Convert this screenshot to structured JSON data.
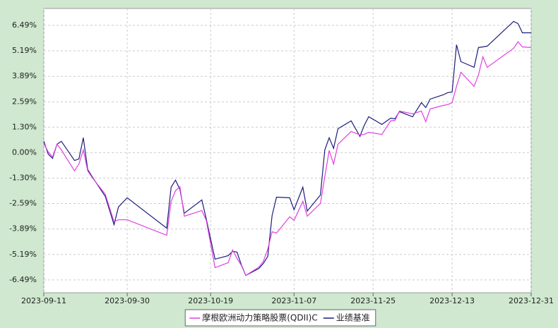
{
  "chart_data": {
    "type": "line",
    "x": [
      "2023-09-11",
      "2023-09-12",
      "2023-09-13",
      "2023-09-14",
      "2023-09-15",
      "2023-09-18",
      "2023-09-19",
      "2023-09-20",
      "2023-09-21",
      "2023-09-22",
      "2023-09-25",
      "2023-09-27",
      "2023-09-28",
      "2023-09-30",
      "2023-10-09",
      "2023-10-10",
      "2023-10-11",
      "2023-10-12",
      "2023-10-13",
      "2023-10-17",
      "2023-10-18",
      "2023-10-20",
      "2023-10-23",
      "2023-10-24",
      "2023-10-25",
      "2023-10-26",
      "2023-10-27",
      "2023-10-30",
      "2023-10-31",
      "2023-11-01",
      "2023-11-02",
      "2023-11-03",
      "2023-11-06",
      "2023-11-07",
      "2023-11-09",
      "2023-11-10",
      "2023-11-13",
      "2023-11-14",
      "2023-11-15",
      "2023-11-16",
      "2023-11-17",
      "2023-11-20",
      "2023-11-22",
      "2023-11-23",
      "2023-11-24",
      "2023-11-27",
      "2023-11-29",
      "2023-11-30",
      "2023-12-01",
      "2023-12-04",
      "2023-12-06",
      "2023-12-07",
      "2023-12-08",
      "2023-12-11",
      "2023-12-12",
      "2023-12-13",
      "2023-12-14",
      "2023-12-15",
      "2023-12-18",
      "2023-12-19",
      "2023-12-20",
      "2023-12-21",
      "2023-12-27",
      "2023-12-28",
      "2023-12-29",
      "2023-12-31"
    ],
    "series": [
      {
        "name": "摩根欧洲动力策略股票(QDII)C",
        "color": "#e040e0",
        "values": [
          0.47,
          0.04,
          -0.22,
          0.43,
          0.14,
          -0.93,
          -0.58,
          0.14,
          -0.93,
          -1.26,
          -2.12,
          -3.52,
          -3.42,
          -3.42,
          -4.21,
          -2.48,
          -1.94,
          -1.73,
          -3.24,
          -2.95,
          -3.45,
          -5.86,
          -5.61,
          -4.96,
          -5.39,
          -5.75,
          -6.26,
          -5.83,
          -5.54,
          -4.93,
          -4.03,
          -4.1,
          -3.27,
          -3.45,
          -2.48,
          -3.24,
          -2.59,
          -1.22,
          0.11,
          -0.58,
          0.43,
          1.08,
          0.9,
          0.93,
          1.04,
          0.93,
          1.62,
          1.65,
          2.12,
          1.98,
          2.12,
          1.58,
          2.23,
          2.41,
          2.45,
          2.55,
          3.38,
          4.1,
          3.38,
          3.96,
          4.89,
          4.35,
          5.32,
          5.65,
          5.39,
          5.36
        ]
      },
      {
        "name": "业绩基准",
        "color": "#1c1c7c",
        "values": [
          0.58,
          -0.07,
          -0.29,
          0.43,
          0.58,
          -0.4,
          -0.32,
          0.76,
          -0.86,
          -1.22,
          -2.23,
          -3.67,
          -2.77,
          -2.3,
          -3.85,
          -1.76,
          -1.4,
          -1.87,
          -3.09,
          -2.41,
          -3.38,
          -5.43,
          -5.25,
          -5.03,
          -5.07,
          -5.72,
          -6.26,
          -5.9,
          -5.65,
          -5.29,
          -3.2,
          -2.27,
          -2.3,
          -2.91,
          -1.76,
          -2.98,
          -2.16,
          0.14,
          0.76,
          0.22,
          1.22,
          1.62,
          0.83,
          1.4,
          1.83,
          1.44,
          1.76,
          1.73,
          2.09,
          1.83,
          2.55,
          2.3,
          2.73,
          2.95,
          3.06,
          3.09,
          5.5,
          4.64,
          4.35,
          5.36,
          5.39,
          5.43,
          6.69,
          6.58,
          6.11,
          6.11
        ]
      }
    ],
    "xlim": [
      "2023-09-11",
      "2023-12-31"
    ],
    "xticks": [
      "2023-09-11",
      "2023-09-30",
      "2023-10-19",
      "2023-11-07",
      "2023-11-25",
      "2023-12-13",
      "2023-12-31"
    ],
    "ylim": [
      -7.14,
      7.35
    ],
    "yticks": [
      {
        "value": 6.49,
        "label": "6.49%"
      },
      {
        "value": 5.19,
        "label": "5.19%"
      },
      {
        "value": 3.89,
        "label": "3.89%"
      },
      {
        "value": 2.59,
        "label": "2.59%"
      },
      {
        "value": 1.3,
        "label": "1.30%"
      },
      {
        "value": 0,
        "label": "0.00%"
      },
      {
        "value": -1.3,
        "label": "-1.30%"
      },
      {
        "value": -2.59,
        "label": "-2.59%"
      },
      {
        "value": -3.89,
        "label": "-3.89%"
      },
      {
        "value": -5.19,
        "label": "-5.19%"
      },
      {
        "value": -6.49,
        "label": "-6.49%"
      }
    ],
    "grid": true,
    "legend": "bottom"
  }
}
